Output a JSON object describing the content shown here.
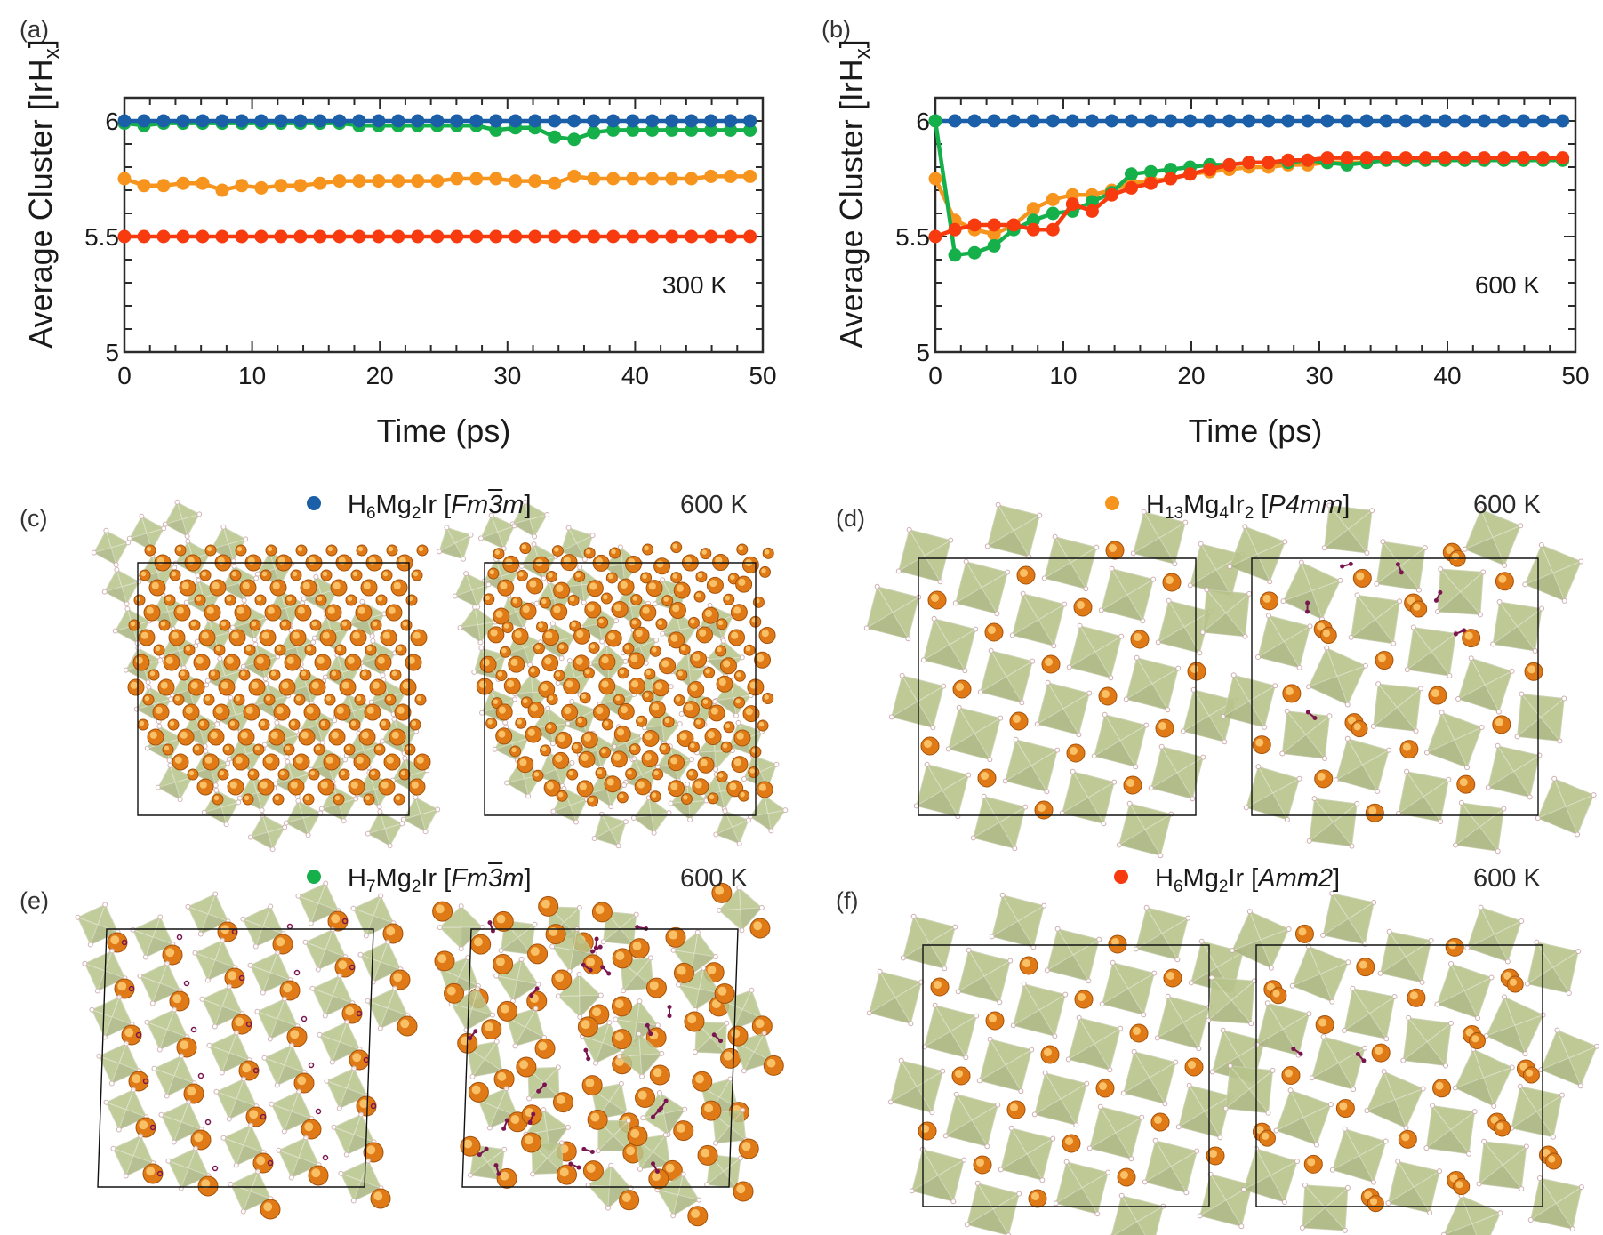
{
  "panel_labels": [
    "(a)",
    "(b)",
    "(c)",
    "(d)",
    "(e)",
    "(f)"
  ],
  "chart_data": [
    {
      "type": "line",
      "panel": "(a)",
      "title": "",
      "annotation": "300 K",
      "xlabel": "Time (ps)",
      "ylabel": "Average Cluster [IrHx]",
      "xlim": [
        0,
        50
      ],
      "ylim": [
        5.0,
        6.1
      ],
      "xticks": [
        0,
        10,
        20,
        30,
        40,
        50
      ],
      "xtick_labels": [
        "0",
        "10",
        "20",
        "30",
        "40",
        "50"
      ],
      "yticks": [
        5.0,
        5.5,
        6.0
      ],
      "ytick_labels": [
        "5",
        "5.5",
        "6"
      ],
      "x_step": 1.53125,
      "n_points": 33,
      "series": [
        {
          "name": "H6Mg2Ir [Fm-3m]",
          "color": "#1a5fa8",
          "values": [
            6,
            6,
            6,
            6,
            6,
            6,
            6,
            6,
            6,
            6,
            6,
            6,
            6,
            6,
            6,
            6,
            6,
            6,
            6,
            6,
            6,
            6,
            6,
            6,
            6,
            6,
            6,
            6,
            6,
            6,
            6,
            6,
            6
          ]
        },
        {
          "name": "H13Mg4Ir2 [P4mm]",
          "color": "#f7941d",
          "values": [
            5.75,
            5.72,
            5.72,
            5.73,
            5.73,
            5.7,
            5.72,
            5.71,
            5.72,
            5.72,
            5.73,
            5.74,
            5.74,
            5.74,
            5.74,
            5.74,
            5.74,
            5.75,
            5.75,
            5.75,
            5.74,
            5.74,
            5.73,
            5.76,
            5.75,
            5.75,
            5.75,
            5.75,
            5.75,
            5.75,
            5.76,
            5.76,
            5.76
          ]
        },
        {
          "name": "H7Mg2Ir [Fm-3m]",
          "color": "#15b04a",
          "values": [
            5.99,
            5.98,
            5.99,
            5.99,
            5.99,
            5.99,
            5.99,
            5.99,
            5.99,
            5.99,
            5.99,
            5.99,
            5.98,
            5.98,
            5.98,
            5.98,
            5.98,
            5.98,
            5.98,
            5.96,
            5.97,
            5.97,
            5.93,
            5.92,
            5.95,
            5.96,
            5.96,
            5.96,
            5.96,
            5.96,
            5.96,
            5.96,
            5.96
          ]
        },
        {
          "name": "H6Mg2Ir [Amm2]",
          "color": "#f73b0f",
          "values": [
            5.5,
            5.5,
            5.5,
            5.5,
            5.5,
            5.5,
            5.5,
            5.5,
            5.5,
            5.5,
            5.5,
            5.5,
            5.5,
            5.5,
            5.5,
            5.5,
            5.5,
            5.5,
            5.5,
            5.5,
            5.5,
            5.5,
            5.5,
            5.5,
            5.5,
            5.5,
            5.5,
            5.5,
            5.5,
            5.5,
            5.5,
            5.5,
            5.5
          ]
        }
      ]
    },
    {
      "type": "line",
      "panel": "(b)",
      "title": "",
      "annotation": "600 K",
      "xlabel": "Time (ps)",
      "ylabel": "Average Cluster [IrHx]",
      "xlim": [
        0,
        50
      ],
      "ylim": [
        5.0,
        6.1
      ],
      "xticks": [
        0,
        10,
        20,
        30,
        40,
        50
      ],
      "xtick_labels": [
        "0",
        "10",
        "20",
        "30",
        "40",
        "50"
      ],
      "yticks": [
        5.0,
        5.5,
        6.0
      ],
      "ytick_labels": [
        "5",
        "5.5",
        "6"
      ],
      "x_step": 1.53125,
      "n_points": 33,
      "series": [
        {
          "name": "H6Mg2Ir [Fm-3m]",
          "color": "#1a5fa8",
          "values": [
            6,
            6,
            6,
            6,
            6,
            6,
            6,
            6,
            6,
            6,
            6,
            6,
            6,
            6,
            6,
            6,
            6,
            6,
            6,
            6,
            6,
            6,
            6,
            6,
            6,
            6,
            6,
            6,
            6,
            6,
            6,
            6,
            6
          ]
        },
        {
          "name": "H13Mg4Ir2 [P4mm]",
          "color": "#f7941d",
          "values": [
            5.75,
            5.57,
            5.53,
            5.51,
            5.55,
            5.62,
            5.66,
            5.68,
            5.68,
            5.7,
            5.73,
            5.74,
            5.75,
            5.77,
            5.78,
            5.79,
            5.8,
            5.8,
            5.81,
            5.81,
            5.82,
            5.82,
            5.82,
            5.83,
            5.83,
            5.83,
            5.83,
            5.83,
            5.83,
            5.83,
            5.83,
            5.83,
            5.83
          ]
        },
        {
          "name": "H7Mg2Ir [Fm-3m]",
          "color": "#15b04a",
          "values": [
            6.0,
            5.42,
            5.43,
            5.46,
            5.53,
            5.57,
            5.6,
            5.61,
            5.65,
            5.69,
            5.77,
            5.78,
            5.79,
            5.8,
            5.81,
            5.81,
            5.82,
            5.82,
            5.82,
            5.83,
            5.82,
            5.81,
            5.82,
            5.83,
            5.83,
            5.83,
            5.83,
            5.83,
            5.83,
            5.83,
            5.83,
            5.83,
            5.83
          ]
        },
        {
          "name": "H6Mg2Ir [Amm2]",
          "color": "#f73b0f",
          "values": [
            5.5,
            5.53,
            5.55,
            5.55,
            5.55,
            5.53,
            5.53,
            5.64,
            5.61,
            5.68,
            5.71,
            5.73,
            5.75,
            5.77,
            5.79,
            5.81,
            5.82,
            5.82,
            5.83,
            5.83,
            5.84,
            5.84,
            5.84,
            5.84,
            5.84,
            5.84,
            5.84,
            5.84,
            5.84,
            5.84,
            5.84,
            5.84,
            5.84
          ]
        }
      ]
    }
  ],
  "legends": [
    {
      "panel": "(c)",
      "color": "#1a5fa8",
      "formula_parts": [
        "H",
        "6",
        "Mg",
        "2",
        "Ir"
      ],
      "space_group_pre": "Fm",
      "space_group_bar": "3",
      "space_group_post": "m",
      "temperature": "600 K"
    },
    {
      "panel": "(d)",
      "color": "#f7941d",
      "formula_parts": [
        "H",
        "13",
        "Mg",
        "4",
        "Ir",
        "2"
      ],
      "space_group": "P4mm",
      "temperature": "600 K"
    },
    {
      "panel": "(e)",
      "color": "#15b04a",
      "formula_parts": [
        "H",
        "7",
        "Mg",
        "2",
        "Ir"
      ],
      "space_group_pre": "Fm",
      "space_group_bar": "3",
      "space_group_post": "m",
      "temperature": "600 K"
    },
    {
      "panel": "(f)",
      "color": "#f73b0f",
      "formula_parts": [
        "H",
        "6",
        "Mg",
        "2",
        "Ir"
      ],
      "space_group": "Amm2",
      "temperature": "600 K"
    }
  ],
  "structure_colors": {
    "octahedron": "#b7c48a",
    "octahedron_dark": "#8f9b66",
    "mg_atom": "#e07a16",
    "mg_highlight": "#ffd27a",
    "h2_molecule": "#7a1550",
    "h_atom": "#f3dede",
    "cell_edge": "#111111"
  },
  "structures": [
    {
      "panel": "(c)",
      "views": [
        "initial",
        "after 600 K MD"
      ],
      "pattern": "diagonal-stripes"
    },
    {
      "panel": "(d)",
      "views": [
        "initial",
        "after 600 K MD"
      ],
      "pattern": "checker"
    },
    {
      "panel": "(e)",
      "views": [
        "initial",
        "after 600 K MD"
      ],
      "pattern": "isolated-octahedra"
    },
    {
      "panel": "(f)",
      "views": [
        "initial",
        "after 600 K MD"
      ],
      "pattern": "checker-tilted"
    }
  ]
}
